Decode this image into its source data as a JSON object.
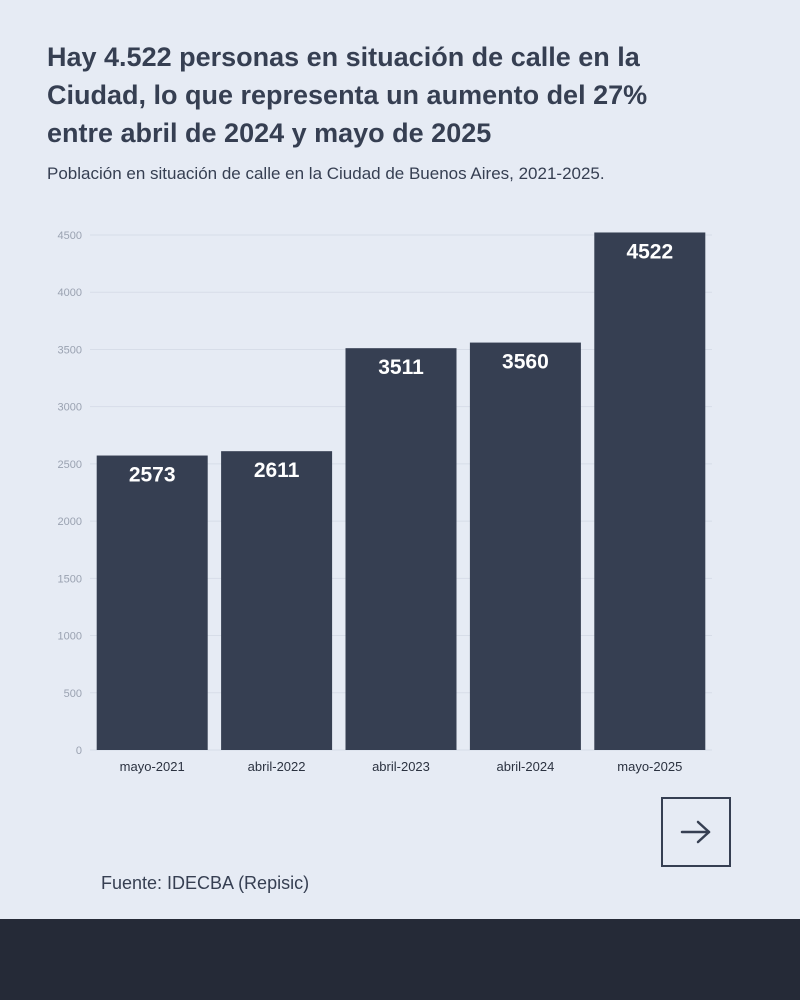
{
  "header": {
    "title": "Hay 4.522 personas en situación de calle en la Ciudad, lo que representa un aumento del 27% entre abril de 2024 y mayo de 2025",
    "subtitle": "Población en situación de calle en la Ciudad de Buenos Aires, 2021-2025."
  },
  "chart_data": {
    "type": "bar",
    "categories": [
      "mayo-2021",
      "abril-2022",
      "abril-2023",
      "abril-2024",
      "mayo-2025"
    ],
    "values": [
      2573,
      2611,
      3511,
      3560,
      4522
    ],
    "data_labels": [
      "2573",
      "2611",
      "3511",
      "3560",
      "4522"
    ],
    "yticks": [
      0,
      500,
      1000,
      1500,
      2000,
      2500,
      3000,
      3500,
      4000,
      4500
    ],
    "ylim": [
      0,
      4500
    ],
    "grid": true,
    "xlabel": "",
    "ylabel": "",
    "bar_color": "#363f52",
    "label_color": "#ffffff"
  },
  "navigation": {
    "next_icon": "arrow-right-icon"
  },
  "source": "Fuente: IDECBA (Repisic)",
  "colors": {
    "background": "#e6ebf4",
    "text": "#363f52",
    "footer": "#252a37"
  }
}
